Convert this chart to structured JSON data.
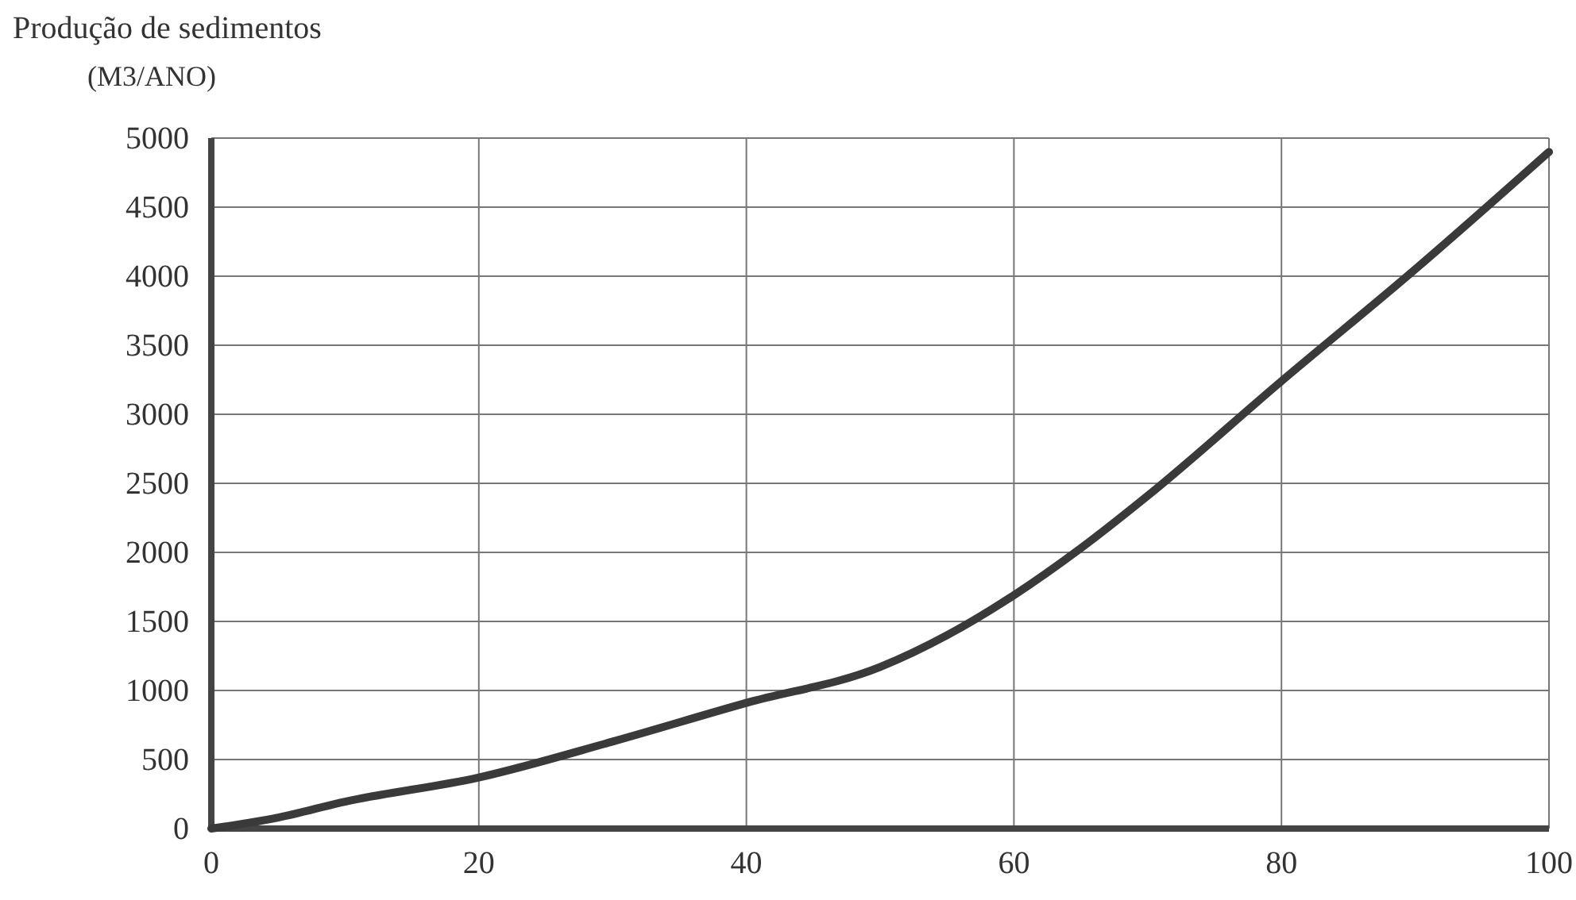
{
  "chart_data": {
    "type": "line",
    "title": "Produção de sedimentos",
    "ylabel": "(M3/ANO)",
    "x": [
      0,
      5,
      10,
      20,
      30,
      40,
      50,
      55,
      60,
      65,
      70,
      80,
      90,
      100
    ],
    "series": [
      {
        "color": "#3a3a3a",
        "values": [
          0,
          80,
          195,
          370,
          630,
          910,
          1170,
          1400,
          1690,
          2030,
          2410,
          3240,
          4050,
          4900
        ]
      }
    ],
    "xlim": [
      0,
      100
    ],
    "xticks": [
      0,
      20,
      40,
      60,
      80,
      100
    ],
    "ylim": [
      0,
      5000
    ],
    "yticks": [
      0,
      500,
      1000,
      1500,
      2000,
      2500,
      3000,
      3500,
      4000,
      4500,
      5000
    ],
    "grid": true,
    "marker": "none",
    "line_style": "solid"
  }
}
